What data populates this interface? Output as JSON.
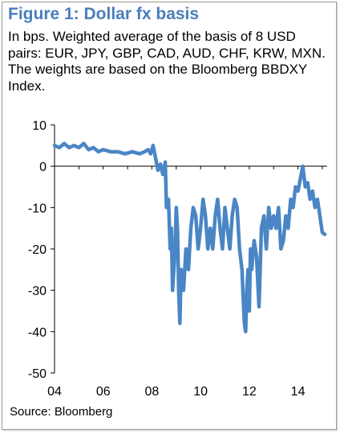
{
  "chart_data": {
    "type": "line",
    "title": "Figure 1: Dollar fx basis",
    "subtitle": "In bps. Weighted average of the basis of 8 USD pairs: EUR, JPY, GBP, CAD, AUD, CHF, KRW, MXN. The weights are based on the Bloomberg BBDXY Index.",
    "source": "Source: Bloomberg",
    "xlabel": "",
    "ylabel": "",
    "x_tick_labels": [
      "04",
      "06",
      "08",
      "10",
      "12",
      "14"
    ],
    "x_ticks": [
      2004,
      2006,
      2008,
      2010,
      2012,
      2014
    ],
    "y_ticks": [
      10,
      0,
      -10,
      -20,
      -30,
      -40,
      -50
    ],
    "xlim": [
      2004,
      2015.2
    ],
    "ylim": [
      -50,
      10
    ],
    "line_color": "#4a86c5",
    "grid": false,
    "series": [
      {
        "x": [
          2004.0,
          2004.2,
          2004.4,
          2004.6,
          2004.8,
          2005.0,
          2005.2,
          2005.4,
          2005.6,
          2005.8,
          2006.0,
          2006.3,
          2006.6,
          2006.9,
          2007.2,
          2007.5,
          2007.7,
          2007.85,
          2007.95,
          2008.05,
          2008.15,
          2008.25,
          2008.35,
          2008.45,
          2008.55,
          2008.6,
          2008.68,
          2008.75,
          2008.8,
          2008.85,
          2008.9,
          2008.95,
          2009.0,
          2009.05,
          2009.1,
          2009.15,
          2009.2,
          2009.3,
          2009.4,
          2009.5,
          2009.6,
          2009.7,
          2009.8,
          2009.9,
          2010.0,
          2010.1,
          2010.2,
          2010.3,
          2010.4,
          2010.5,
          2010.6,
          2010.7,
          2010.8,
          2010.9,
          2011.0,
          2011.1,
          2011.2,
          2011.3,
          2011.4,
          2011.5,
          2011.6,
          2011.7,
          2011.75,
          2011.8,
          2011.85,
          2011.9,
          2011.95,
          2012.0,
          2012.05,
          2012.1,
          2012.2,
          2012.3,
          2012.4,
          2012.5,
          2012.6,
          2012.7,
          2012.8,
          2012.9,
          2013.0,
          2013.1,
          2013.2,
          2013.3,
          2013.4,
          2013.5,
          2013.6,
          2013.7,
          2013.8,
          2013.9,
          2014.0,
          2014.1,
          2014.2,
          2014.3,
          2014.4,
          2014.5,
          2014.6,
          2014.7,
          2014.8,
          2014.9,
          2015.0,
          2015.1
        ],
        "y": [
          5,
          4.5,
          5.5,
          4.5,
          5,
          4.5,
          5.5,
          4,
          4.5,
          3.5,
          4,
          3.5,
          3.5,
          3,
          3.5,
          3,
          3.5,
          4,
          3,
          5,
          2,
          -1,
          0.5,
          -2,
          1,
          -10,
          -8,
          -20,
          -15,
          -30,
          -25,
          -20,
          -10,
          -15,
          -30,
          -38,
          -25,
          -30,
          -20,
          -25,
          -15,
          -10,
          -12,
          -20,
          -15,
          -8,
          -12,
          -20,
          -15,
          -20,
          -12,
          -8,
          -15,
          -20,
          -10,
          -15,
          -20,
          -12,
          -8,
          -10,
          -20,
          -25,
          -32,
          -38,
          -40,
          -30,
          -25,
          -35,
          -20,
          -25,
          -18,
          -22,
          -34,
          -15,
          -12,
          -20,
          -10,
          -15,
          -12,
          -15,
          -10,
          -20,
          -18,
          -12,
          -15,
          -8,
          -10,
          -5,
          -6,
          -3,
          0,
          -5,
          -4,
          -8,
          -6,
          -10,
          -8,
          -12,
          -16,
          -16.5
        ]
      }
    ]
  }
}
